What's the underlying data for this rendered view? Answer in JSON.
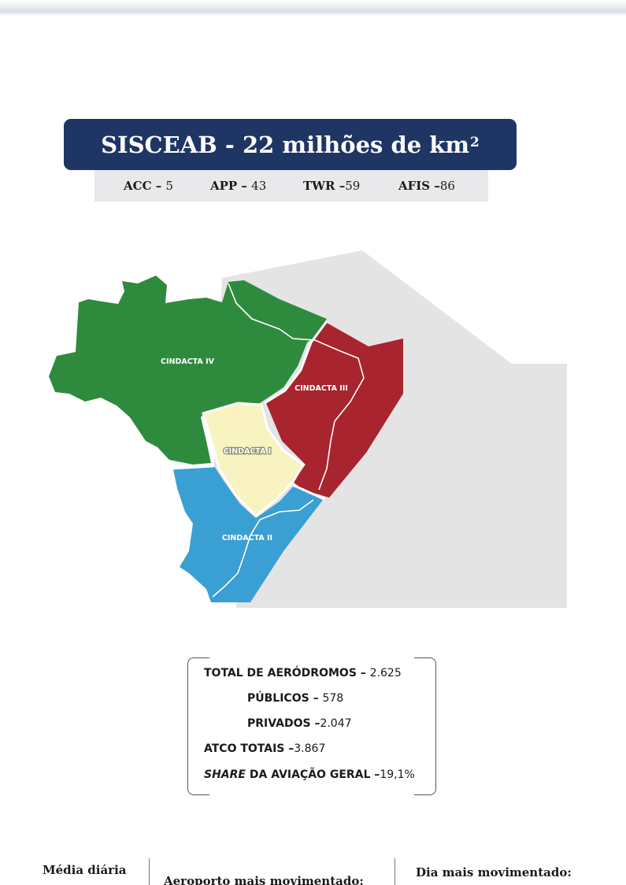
{
  "title": {
    "text": "SISCEAB - 22 milhões de km",
    "superscript": "2"
  },
  "stats": [
    {
      "label": "ACC",
      "sep": " – ",
      "value": "5"
    },
    {
      "label": "APP",
      "sep": " – ",
      "value": "43"
    },
    {
      "label": "TWR",
      "sep": " –",
      "value": "59"
    },
    {
      "label": "AFIS",
      "sep": " –",
      "value": "86"
    }
  ],
  "map": {
    "regions": [
      {
        "name": "CINDACTA IV",
        "color": "#2e8b3e"
      },
      {
        "name": "CINDACTA III",
        "color": "#a8242e"
      },
      {
        "name": "CINDACTA I",
        "color": "#f8f3c0"
      },
      {
        "name": "CINDACTA II",
        "color": "#3a9fd2"
      }
    ],
    "background_color": "#e4e4e4"
  },
  "summary": {
    "total": {
      "label": "TOTAL DE AERÓDROMOS – ",
      "value": "2.625"
    },
    "publicos": {
      "label": "PÚBLICOS – ",
      "value": "578"
    },
    "privados": {
      "label": "PRIVADOS –",
      "value": "2.047"
    },
    "atco": {
      "label": "ATCO TOTAIS –",
      "value": "3.867"
    },
    "share": {
      "label_italic": "SHARE",
      "label": " DA AVIAÇÃO GERAL –",
      "value": "19,1%"
    }
  },
  "footer": {
    "col1": "Média diária",
    "col2": "Aeroporto mais movimentado:",
    "col3": "Dia mais movimentado:"
  }
}
